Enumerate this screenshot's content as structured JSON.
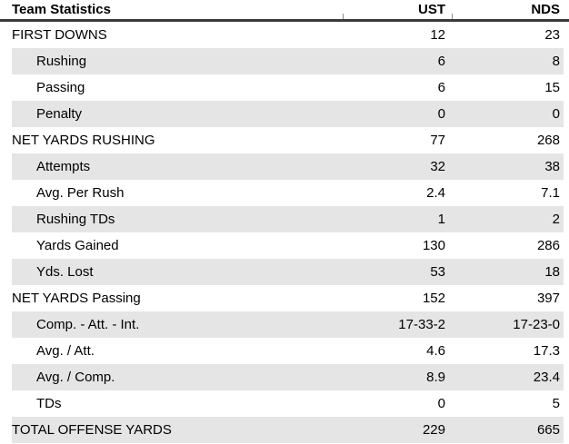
{
  "colors": {
    "stripe": "#e5e5e5",
    "header_rule": "#3b3b3b",
    "separator_tick": "#8a8a8a",
    "text": "#000000",
    "background": "#ffffff"
  },
  "chart_data": {
    "type": "table",
    "title": "Team Statistics",
    "columns": [
      "Team Statistics",
      "UST",
      "NDS"
    ],
    "rows": [
      {
        "label": "FIRST DOWNS",
        "ust": "12",
        "nds": "23",
        "indent": false
      },
      {
        "label": "Rushing",
        "ust": "6",
        "nds": "8",
        "indent": true
      },
      {
        "label": "Passing",
        "ust": "6",
        "nds": "15",
        "indent": true
      },
      {
        "label": "Penalty",
        "ust": "0",
        "nds": "0",
        "indent": true
      },
      {
        "label": "NET YARDS RUSHING",
        "ust": "77",
        "nds": "268",
        "indent": false
      },
      {
        "label": "Attempts",
        "ust": "32",
        "nds": "38",
        "indent": true
      },
      {
        "label": "Avg. Per Rush",
        "ust": "2.4",
        "nds": "7.1",
        "indent": true
      },
      {
        "label": "Rushing TDs",
        "ust": "1",
        "nds": "2",
        "indent": true
      },
      {
        "label": "Yards Gained",
        "ust": "130",
        "nds": "286",
        "indent": true
      },
      {
        "label": "Yds. Lost",
        "ust": "53",
        "nds": "18",
        "indent": true
      },
      {
        "label": "NET YARDS Passing",
        "ust": "152",
        "nds": "397",
        "indent": false
      },
      {
        "label": "Comp. - Att. - Int.",
        "ust": "17-33-2",
        "nds": "17-23-0",
        "indent": true
      },
      {
        "label": "Avg. / Att.",
        "ust": "4.6",
        "nds": "17.3",
        "indent": true
      },
      {
        "label": "Avg. / Comp.",
        "ust": "8.9",
        "nds": "23.4",
        "indent": true
      },
      {
        "label": "TDs",
        "ust": "0",
        "nds": "5",
        "indent": true
      },
      {
        "label": "TOTAL OFFENSE YARDS",
        "ust": "229",
        "nds": "665",
        "indent": false
      }
    ]
  }
}
